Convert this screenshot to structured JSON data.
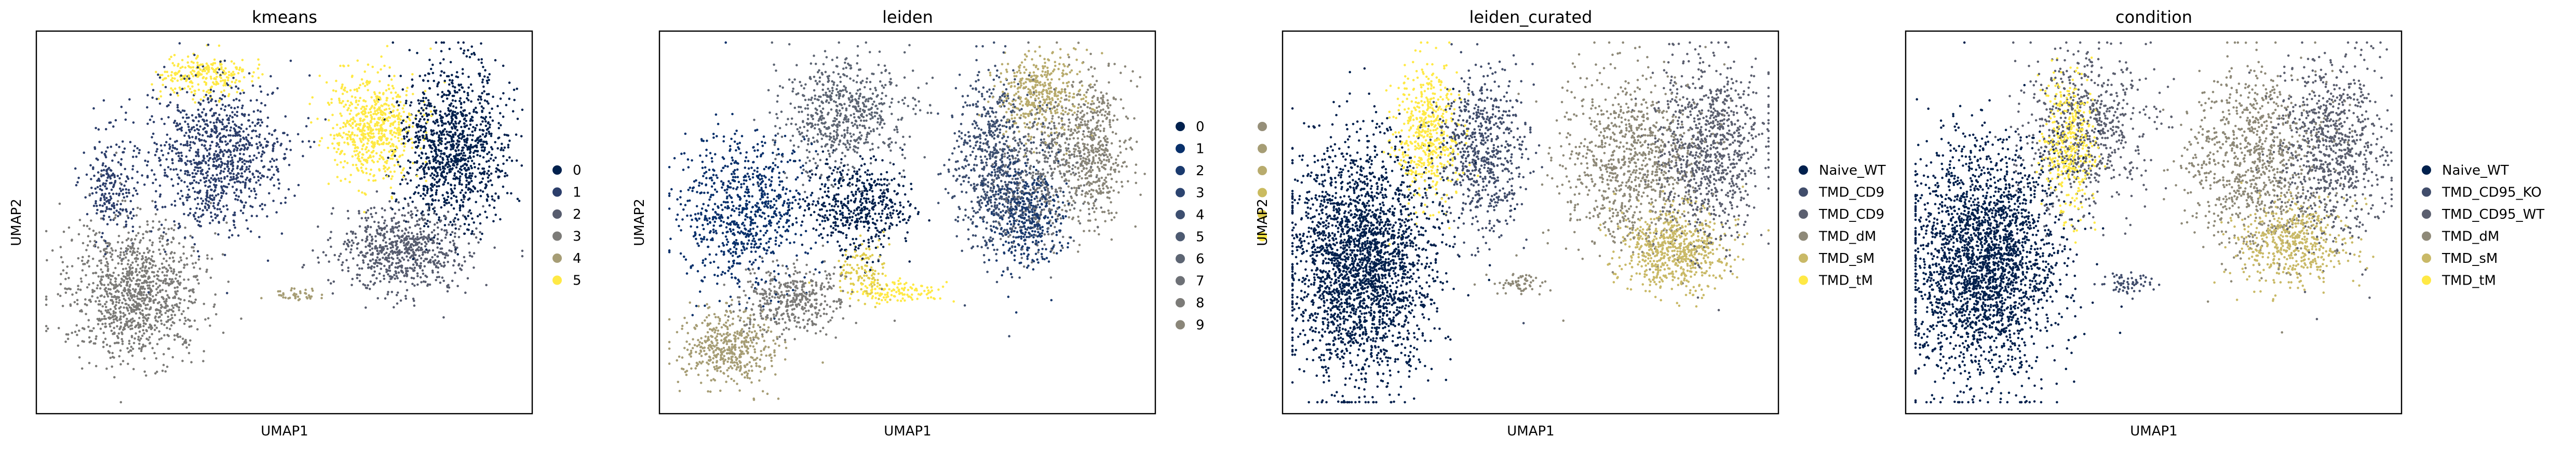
{
  "chart_data": [
    {
      "type": "scatter",
      "title": "kmeans",
      "xlabel": "UMAP1",
      "ylabel": "UMAP2",
      "legend": "right",
      "series": [
        {
          "name": "0",
          "color": "#00204d"
        },
        {
          "name": "1",
          "color": "#2c3e6b"
        },
        {
          "name": "2",
          "color": "#575c6e"
        },
        {
          "name": "3",
          "color": "#7c7b78"
        },
        {
          "name": "4",
          "color": "#a69d75"
        },
        {
          "name": "5",
          "color": "#ffe945"
        }
      ]
    },
    {
      "type": "scatter",
      "title": "leiden",
      "xlabel": "UMAP1",
      "ylabel": "UMAP2",
      "legend": "right",
      "series": [
        {
          "name": "0",
          "color": "#00204d"
        },
        {
          "name": "1",
          "color": "#08306b"
        },
        {
          "name": "2",
          "color": "#1a3a6e"
        },
        {
          "name": "3",
          "color": "#2c4470"
        },
        {
          "name": "4",
          "color": "#3d4f70"
        },
        {
          "name": "5",
          "color": "#4d5a71"
        },
        {
          "name": "6",
          "color": "#5d6573"
        },
        {
          "name": "7",
          "color": "#6d7076"
        },
        {
          "name": "8",
          "color": "#7c7b78"
        },
        {
          "name": "9",
          "color": "#8a8679"
        },
        {
          "name": "",
          "color": "#968f79"
        },
        {
          "name": "",
          "color": "#a69d75"
        },
        {
          "name": "",
          "color": "#b8ab6d"
        },
        {
          "name": "",
          "color": "#cabb5f"
        },
        {
          "name": "",
          "color": "#dfcc4c"
        },
        {
          "name": "",
          "color": "#ffe945"
        }
      ]
    },
    {
      "type": "scatter",
      "title": "leiden_curated",
      "xlabel": "UMAP1",
      "ylabel": "UMAP2",
      "legend": "right",
      "series": [
        {
          "name": "Naive_WT",
          "color": "#00204d"
        },
        {
          "name": "TMD_CD9",
          "color": "#414d6b"
        },
        {
          "name": "TMD_CD9",
          "color": "#5b5f6f"
        },
        {
          "name": "TMD_dM",
          "color": "#8e8978"
        },
        {
          "name": "TMD_sM",
          "color": "#c9b967"
        },
        {
          "name": "TMD_tM",
          "color": "#ffe945"
        }
      ]
    },
    {
      "type": "scatter",
      "title": "condition",
      "xlabel": "UMAP1",
      "ylabel": "UMAP2",
      "legend": "right",
      "series": [
        {
          "name": "Naive_WT",
          "color": "#00204d"
        },
        {
          "name": "TMD_CD95_KO",
          "color": "#414d6b"
        },
        {
          "name": "TMD_CD95_WT",
          "color": "#5b5f6f"
        },
        {
          "name": "TMD_dM",
          "color": "#8e8978"
        },
        {
          "name": "TMD_sM",
          "color": "#c9b967"
        },
        {
          "name": "TMD_tM",
          "color": "#ffe945"
        }
      ]
    }
  ]
}
